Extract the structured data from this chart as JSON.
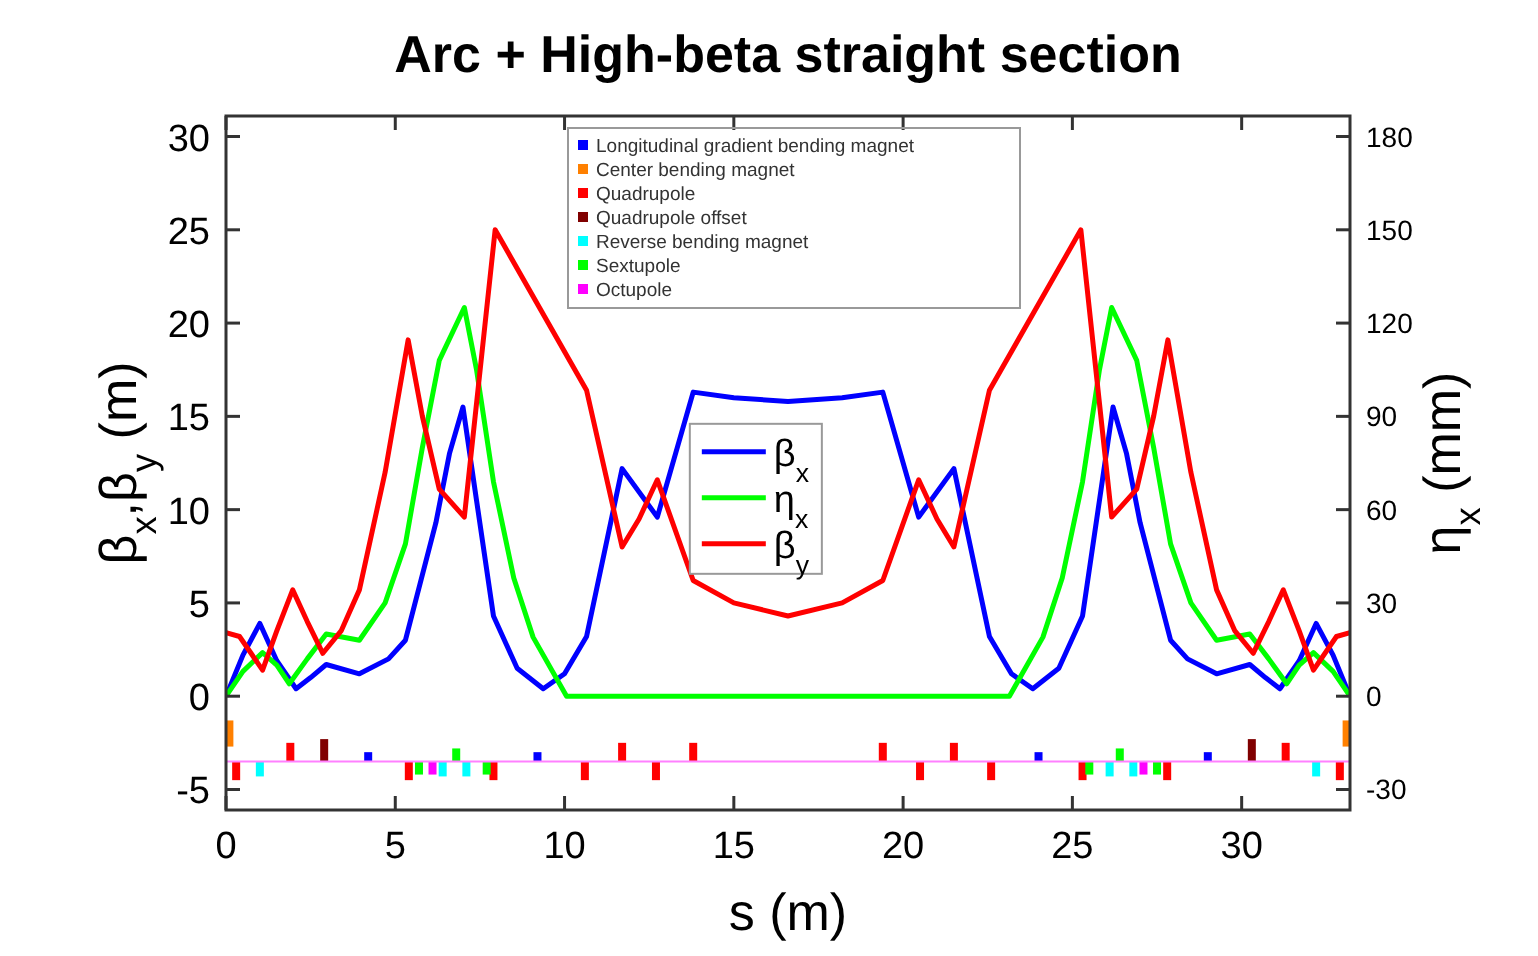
{
  "chart_data": {
    "type": "line",
    "title": "Arc + High-beta straight section",
    "xlabel": "s (m)",
    "ylabel": "β$_{x}$,β$_{y}$ (m)",
    "y2label": "η$_{x}$ (mm)",
    "xlim": [
      0,
      33.2
    ],
    "xticks": [
      0,
      5,
      10,
      15,
      20,
      25,
      30
    ],
    "ylim": [
      -6.1,
      31.1
    ],
    "yticks": [
      -5,
      0,
      5,
      10,
      15,
      20,
      25,
      30
    ],
    "y2lim": [
      -36.6,
      186.6
    ],
    "y2ticks": [
      -30,
      0,
      30,
      60,
      90,
      120,
      150,
      180
    ],
    "legend": "top",
    "line_style": "solid",
    "marker": "none",
    "ref_lines": [
      {
        "axis": "y",
        "value": -3.5,
        "color": "#ff80ff"
      }
    ],
    "series": [
      {
        "name": "Longitudinal gradient bending magnet",
        "type": "bar",
        "color": "#0000ff",
        "x": [
          4.2,
          9.2,
          24.0,
          29.0
        ],
        "base": [
          -3.5,
          -3.5,
          -3.5,
          -3.5
        ],
        "values": [
          0.5,
          0.5,
          0.5,
          0.5
        ]
      },
      {
        "name": "Center bending magnet",
        "type": "bar",
        "color": "#ff8000",
        "x": [
          0.1,
          33.1
        ],
        "base": [
          -2.7,
          -2.7
        ],
        "values": [
          1.4,
          1.4
        ]
      },
      {
        "name": "Quadrupole",
        "type": "bar",
        "color": "#ff0000",
        "x": [
          0.3,
          1.9,
          5.4,
          7.9,
          10.6,
          11.7,
          12.7,
          13.8,
          19.4,
          20.5,
          21.5,
          22.6,
          25.3,
          27.8,
          31.3,
          32.9
        ],
        "base": [
          -4.5,
          -3.5,
          -4.5,
          -4.5,
          -4.5,
          -3.5,
          -4.5,
          -3.5,
          -3.5,
          -4.5,
          -3.5,
          -4.5,
          -4.5,
          -4.5,
          -3.5,
          -4.5
        ],
        "values": [
          1.0,
          1.0,
          1.0,
          1.0,
          1.0,
          1.0,
          1.0,
          1.0,
          1.0,
          1.0,
          1.0,
          1.0,
          1.0,
          1.0,
          1.0,
          1.0
        ]
      },
      {
        "name": "Quadrupole offset",
        "type": "bar",
        "color": "#800000",
        "x": [
          2.9,
          30.3
        ],
        "base": [
          -3.5,
          -3.5
        ],
        "values": [
          1.2,
          1.2
        ]
      },
      {
        "name": "Reverse bending magnet",
        "type": "bar",
        "color": "#00ffff",
        "x": [
          1.0,
          6.4,
          7.1,
          26.1,
          26.8,
          32.2
        ],
        "base": [
          -4.3,
          -4.3,
          -4.3,
          -4.3,
          -4.3,
          -4.3
        ],
        "values": [
          0.8,
          0.8,
          0.8,
          0.8,
          0.8,
          0.8
        ]
      },
      {
        "name": "Sextupole",
        "type": "bar",
        "color": "#00ff00",
        "x": [
          5.7,
          6.8,
          7.7,
          25.5,
          26.4,
          27.5
        ],
        "base": [
          -4.2,
          -3.5,
          -4.2,
          -4.2,
          -3.5,
          -4.2
        ],
        "values": [
          0.7,
          0.7,
          0.7,
          0.7,
          0.7,
          0.7
        ]
      },
      {
        "name": "Octupole",
        "type": "bar",
        "color": "#ff00ff",
        "x": [
          6.1,
          27.1
        ],
        "base": [
          -4.2,
          -4.2
        ],
        "values": [
          0.7,
          0.7
        ]
      },
      {
        "name": "β$_{x}$",
        "color": "#0000ff",
        "x": [
          0,
          0.5,
          1.0,
          1.5,
          2.07,
          2.5,
          2.96,
          3.94,
          4.8,
          5.3,
          6.2,
          6.6,
          7.0,
          7.4,
          7.9,
          8.6,
          9.37,
          10.0,
          10.65,
          11.7,
          12.74,
          13.8,
          15.0,
          16.6,
          18.2,
          19.4,
          20.46,
          21.5,
          22.55,
          23.2,
          23.83,
          24.6,
          25.3,
          25.8,
          26.2,
          26.6,
          27.0,
          27.9,
          28.4,
          29.26,
          30.24,
          30.7,
          31.13,
          31.7,
          32.2,
          32.7,
          33.2
        ],
        "values": [
          0,
          2.2,
          3.9,
          1.9,
          0.4,
          1.0,
          1.7,
          1.2,
          2.0,
          3.0,
          9.3,
          13.0,
          15.5,
          10.5,
          4.3,
          1.5,
          0.4,
          1.2,
          3.2,
          12.2,
          9.6,
          16.3,
          16.0,
          15.8,
          16.0,
          16.3,
          9.6,
          12.2,
          3.2,
          1.2,
          0.4,
          1.5,
          4.3,
          10.5,
          15.5,
          13.0,
          9.3,
          3.0,
          2.0,
          1.2,
          1.7,
          1.0,
          0.4,
          1.9,
          3.9,
          2.2,
          0
        ]
      },
      {
        "name": "η$_{x}$",
        "axis": "y2",
        "color": "#00ff00",
        "x": [
          0,
          0.5,
          1.08,
          1.5,
          1.87,
          2.4,
          2.96,
          3.94,
          4.7,
          5.3,
          5.8,
          6.3,
          7.04,
          7.4,
          7.9,
          8.5,
          9.07,
          10.06,
          23.14,
          24.13,
          24.7,
          25.3,
          25.8,
          26.16,
          26.9,
          27.4,
          27.9,
          28.5,
          29.26,
          30.24,
          30.8,
          31.33,
          31.7,
          32.12,
          32.7,
          33.2
        ],
        "values": [
          0,
          8,
          14,
          10,
          4,
          12,
          20,
          18,
          30,
          49,
          80,
          108,
          125,
          105,
          69,
          38,
          19,
          0,
          0,
          19,
          38,
          69,
          105,
          125,
          108,
          80,
          49,
          30,
          18,
          20,
          12,
          4,
          10,
          14,
          8,
          0
        ]
      },
      {
        "name": "β$_{y}$",
        "color": "#ff0000",
        "x": [
          0,
          0.4,
          1.08,
          1.5,
          1.97,
          2.4,
          2.86,
          3.4,
          3.94,
          4.7,
          5.38,
          5.8,
          6.3,
          7.04,
          7.95,
          10.65,
          11.7,
          12.2,
          12.74,
          13.8,
          15.0,
          16.6,
          18.2,
          19.4,
          20.46,
          21.0,
          21.5,
          22.55,
          25.25,
          26.16,
          26.9,
          27.4,
          27.82,
          28.5,
          29.26,
          29.8,
          30.34,
          30.8,
          31.23,
          31.7,
          32.12,
          32.8,
          33.2
        ],
        "values": [
          3.4,
          3.2,
          1.4,
          3.5,
          5.7,
          4.0,
          2.3,
          3.5,
          5.7,
          12,
          19.1,
          15,
          11.1,
          9.6,
          25.0,
          16.4,
          8.0,
          9.5,
          11.6,
          6.2,
          5.0,
          4.3,
          5.0,
          6.2,
          11.6,
          9.5,
          8.0,
          16.4,
          25.0,
          9.6,
          11.1,
          15,
          19.1,
          12,
          5.7,
          3.5,
          2.3,
          4.0,
          5.7,
          3.5,
          1.4,
          3.2,
          3.4
        ]
      }
    ]
  }
}
